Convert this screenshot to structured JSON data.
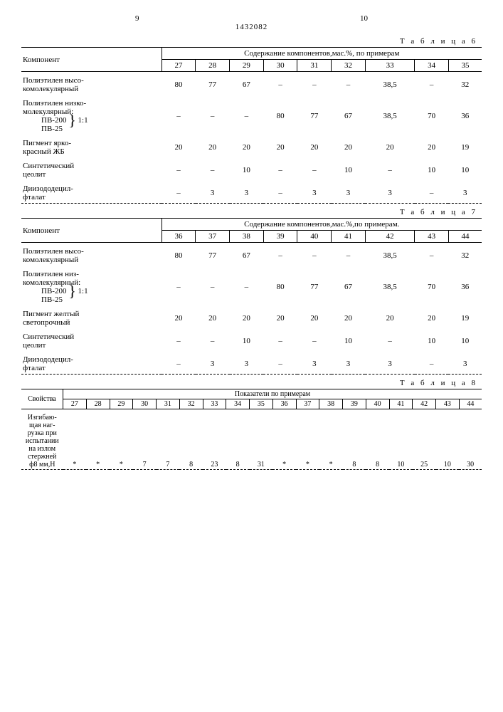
{
  "header": {
    "page_left": "9",
    "page_right": "10",
    "doc_num": "1432082"
  },
  "table6": {
    "label": "Т а б л и ц а  6",
    "component_hdr": "Компонент",
    "content_hdr": "Содержание компонентов,мас.%, по примерам",
    "cols": [
      "27",
      "28",
      "29",
      "30",
      "31",
      "32",
      "33",
      "34",
      "35"
    ],
    "rows": [
      {
        "label_lines": [
          "Полиэтилен высо-",
          "комолекулярный"
        ],
        "vals": [
          "80",
          "77",
          "67",
          "–",
          "–",
          "–",
          "38,5",
          "–",
          "32"
        ]
      },
      {
        "label_lines": [
          "Полиэтилен низко-",
          "молекулярный:"
        ],
        "sub": "ПВ-200",
        "sub2": "ПВ-25",
        "ratio": "1:1",
        "vals": [
          "–",
          "–",
          "–",
          "80",
          "77",
          "67",
          "38,5",
          "70",
          "36"
        ]
      },
      {
        "label_lines": [
          "Пигмент ярко-",
          "красный ЖБ"
        ],
        "vals": [
          "20",
          "20",
          "20",
          "20",
          "20",
          "20",
          "20",
          "20",
          "19"
        ]
      },
      {
        "label_lines": [
          "Синтетический",
          "цеолит"
        ],
        "vals": [
          "–",
          "–",
          "10",
          "–",
          "–",
          "10",
          "–",
          "10",
          "10"
        ]
      },
      {
        "label_lines": [
          "Диизододецил-",
          "фталат"
        ],
        "vals": [
          "–",
          "3",
          "3",
          "–",
          "3",
          "3",
          "3",
          "–",
          "3"
        ]
      }
    ]
  },
  "table7": {
    "label": "Т а б л и ц а  7",
    "component_hdr": "Компонент",
    "content_hdr": "Содержание компонентов,мас.%,по примерам.",
    "cols": [
      "36",
      "37",
      "38",
      "39",
      "40",
      "41",
      "42",
      "43",
      "44"
    ],
    "rows": [
      {
        "label_lines": [
          "Полиэтилен высо-",
          "комолекулярный"
        ],
        "vals": [
          "80",
          "77",
          "67",
          "–",
          "–",
          "–",
          "38,5",
          "–",
          "32"
        ]
      },
      {
        "label_lines": [
          "Полиэтилен низ-",
          "комолекулярный:"
        ],
        "sub": "ПВ-200",
        "sub2": "ПВ-25",
        "ratio": "1:1",
        "vals": [
          "–",
          "–",
          "–",
          "80",
          "77",
          "67",
          "38,5",
          "70",
          "36"
        ]
      },
      {
        "label_lines": [
          "Пигмент желтый",
          "светопрочный"
        ],
        "vals": [
          "20",
          "20",
          "20",
          "20",
          "20",
          "20",
          "20",
          "20",
          "19"
        ]
      },
      {
        "label_lines": [
          "Синтетический",
          "цеолит"
        ],
        "vals": [
          "–",
          "–",
          "10",
          "–",
          "–",
          "10",
          "–",
          "10",
          "10"
        ]
      },
      {
        "label_lines": [
          "Диизододецил-",
          "фталат"
        ],
        "vals": [
          "–",
          "3",
          "3",
          "–",
          "3",
          "3",
          "3",
          "–",
          "3"
        ]
      }
    ]
  },
  "table8": {
    "label": "Т а б л и ц а  8",
    "prop_hdr": "Свойства",
    "content_hdr": "Показатели по примерам",
    "cols": [
      "27",
      "28",
      "29",
      "30",
      "31",
      "32",
      "33",
      "34",
      "35",
      "36",
      "37",
      "38",
      "39",
      "40",
      "41",
      "42",
      "43",
      "44"
    ],
    "row": {
      "label_lines": [
        "Изгибаю-",
        "щая наг-",
        "рузка при",
        "испытании",
        "на излом",
        "стержней",
        "ф8 мм,Н"
      ],
      "vals": [
        "*",
        "*",
        "*",
        "7",
        "7",
        "8",
        "23",
        "8",
        "31",
        "*",
        "*",
        "*",
        "8",
        "8",
        "10",
        "25",
        "10",
        "30"
      ]
    }
  }
}
